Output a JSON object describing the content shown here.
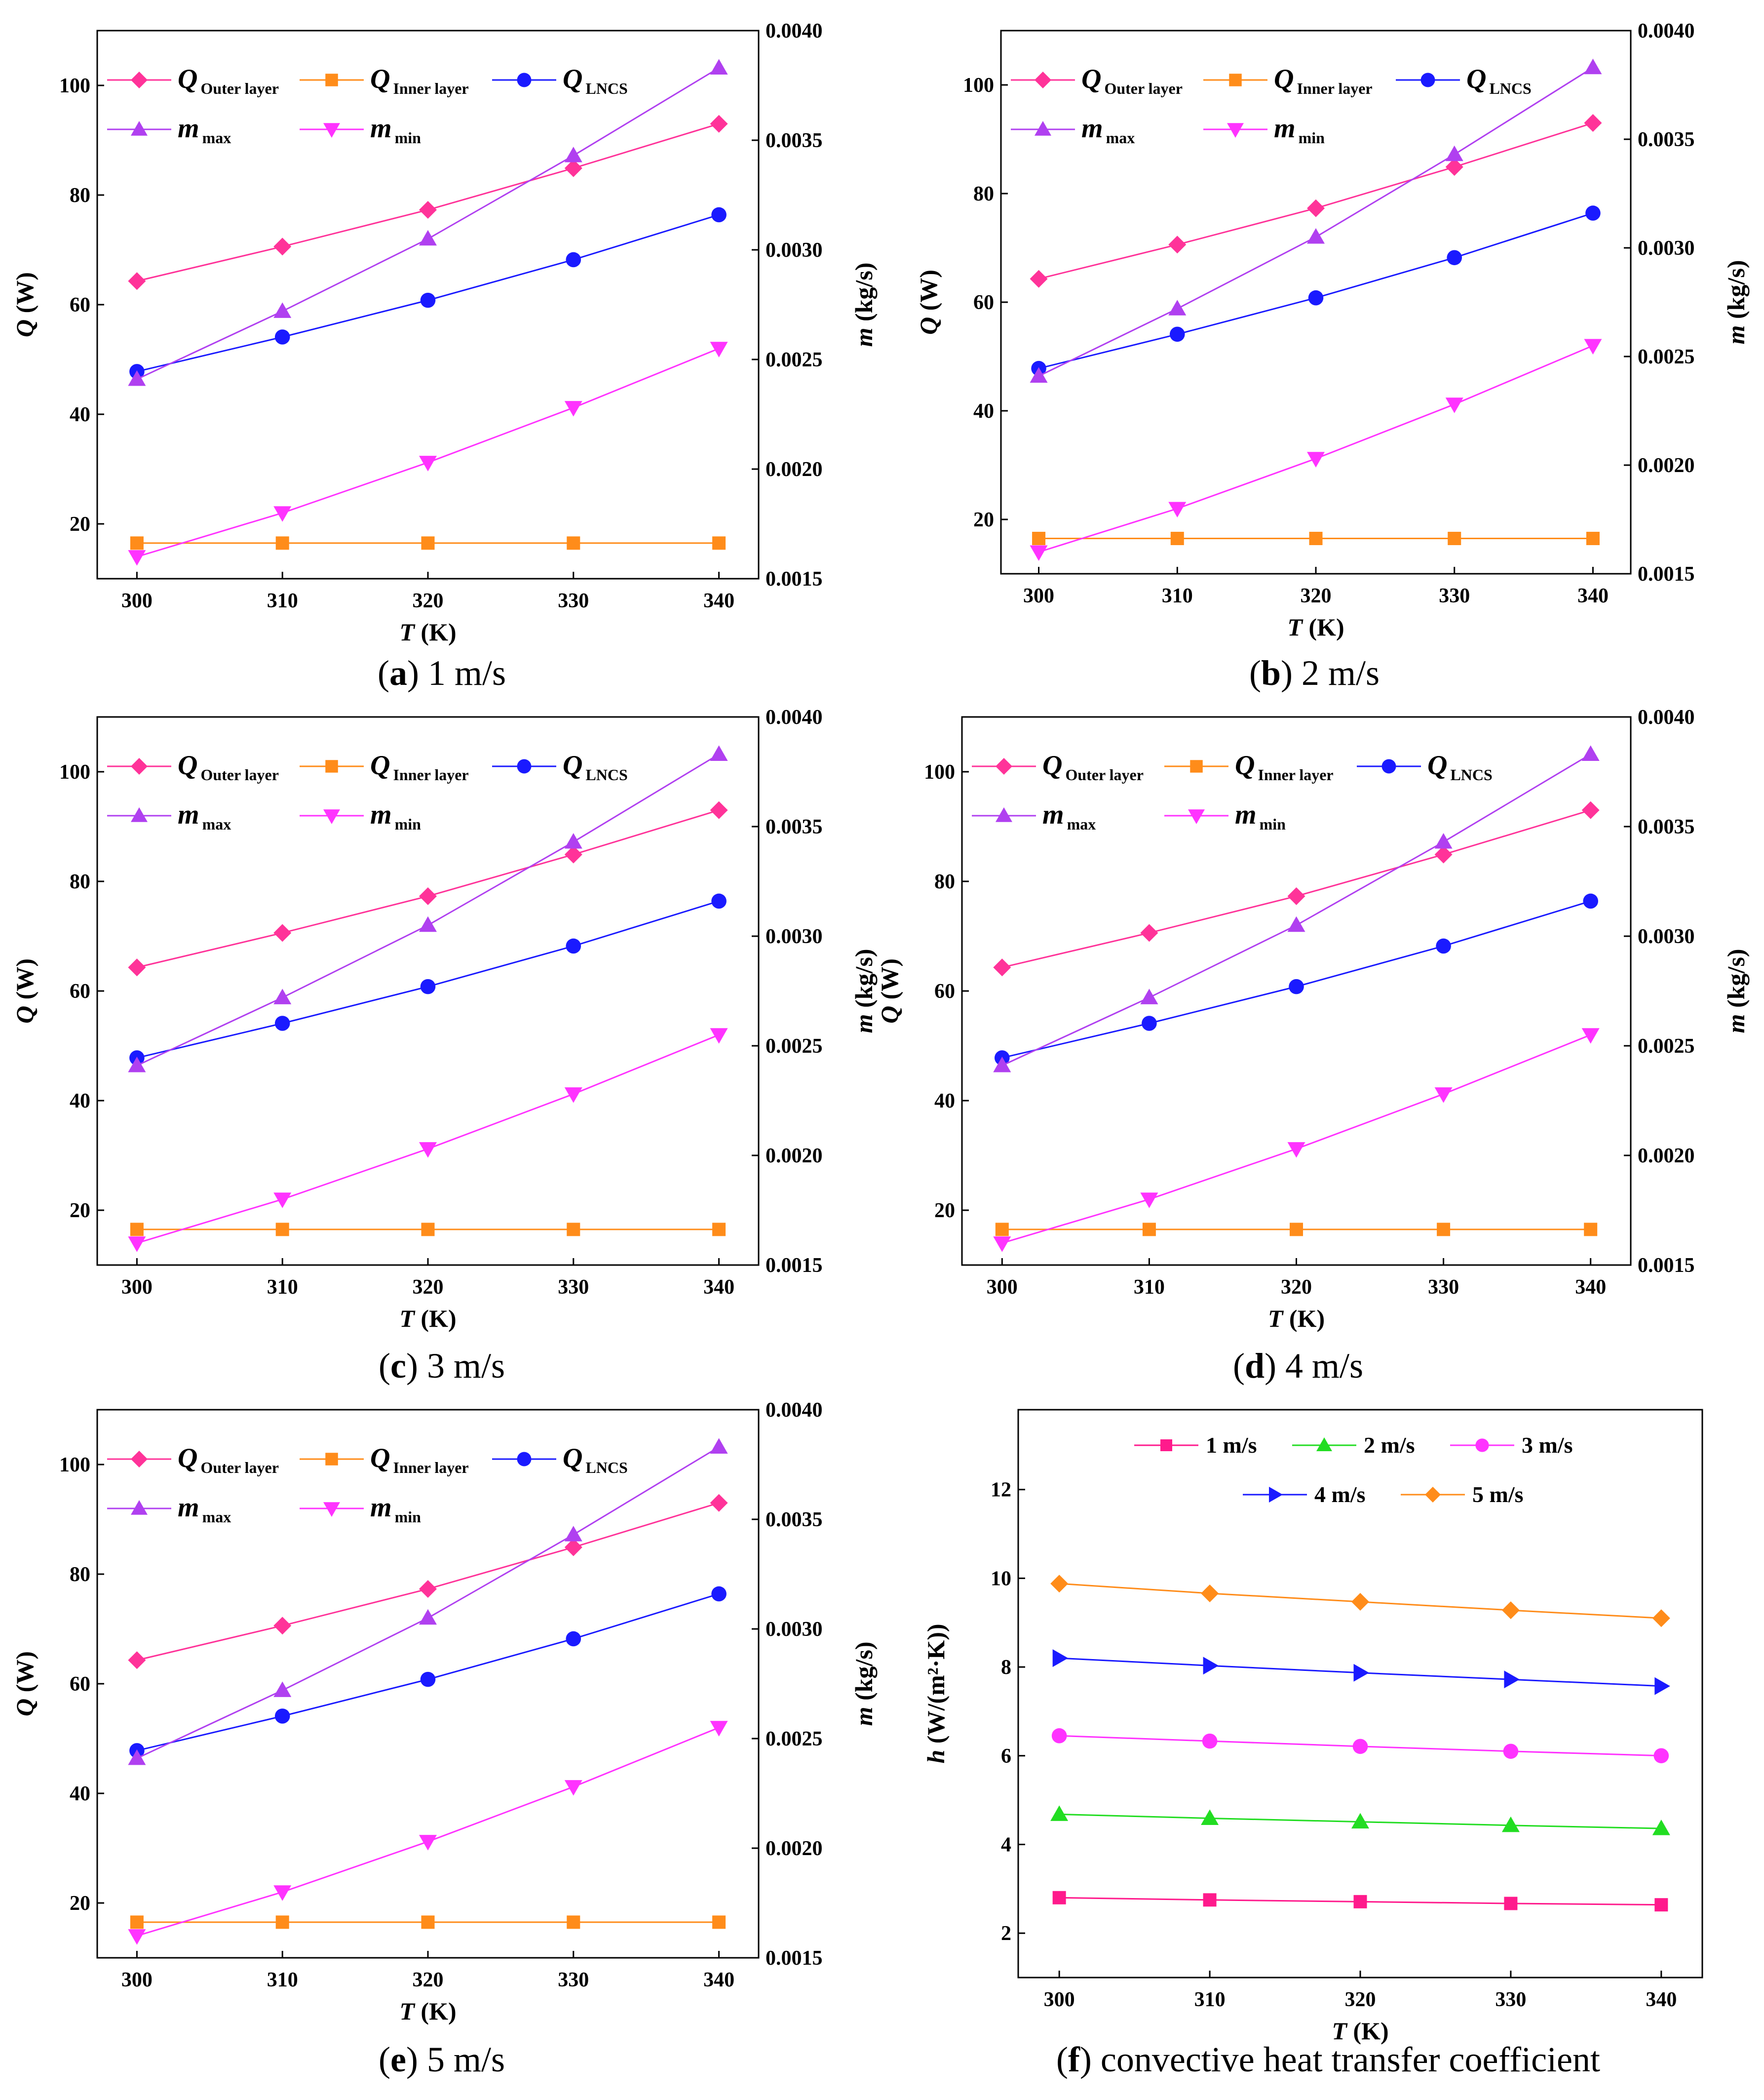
{
  "chart_data": [
    {
      "id": "a",
      "type": "line",
      "caption_letter": "a",
      "caption_text": "1 m/s",
      "xlabel": "T",
      "xlabel_unit": "(K)",
      "ylabel_left": "Q",
      "ylabel_left_unit": "(W)",
      "ylabel_right": "m",
      "ylabel_right_unit": "(kg/s)",
      "x": [
        300,
        310,
        320,
        330,
        340
      ],
      "xticks": [
        "300",
        "310",
        "320",
        "330",
        "340"
      ],
      "ylim_left": [
        10,
        110
      ],
      "yticks_left": [
        "20",
        "40",
        "60",
        "80",
        "100"
      ],
      "ylim_right": [
        0.0015,
        0.004
      ],
      "yticks_right": [
        "0.0015",
        "0.0020",
        "0.0025",
        "0.0030",
        "0.0035",
        "0.0040"
      ],
      "series": [
        {
          "name": "Q",
          "sub": "Outer layer",
          "axis": "left",
          "color": "#ff3399",
          "marker": "diamond",
          "values": [
            64.3,
            70.6,
            77.3,
            84.9,
            93.0
          ]
        },
        {
          "name": "Q",
          "sub": "Inner layer",
          "axis": "left",
          "color": "#ff8c1a",
          "marker": "square",
          "values": [
            16.5,
            16.5,
            16.5,
            16.5,
            16.5
          ]
        },
        {
          "name": "Q",
          "sub": "LNCS",
          "axis": "left",
          "color": "#1a1aff",
          "marker": "circle",
          "values": [
            47.8,
            54.1,
            60.8,
            68.2,
            76.4
          ]
        },
        {
          "name": "m",
          "sub": "max",
          "axis": "right",
          "color": "#b040f0",
          "marker": "triangle-up",
          "values": [
            0.00241,
            0.00272,
            0.00305,
            0.00343,
            0.00383
          ]
        },
        {
          "name": "m",
          "sub": "min",
          "axis": "right",
          "color": "#ff33ff",
          "marker": "triangle-down",
          "values": [
            0.0016,
            0.0018,
            0.00203,
            0.00228,
            0.00255
          ]
        }
      ]
    },
    {
      "id": "b",
      "type": "line",
      "caption_letter": "b",
      "caption_text": "2 m/s",
      "xlabel": "T",
      "xlabel_unit": "(K)",
      "ylabel_left": "Q",
      "ylabel_left_unit": "(W)",
      "ylabel_right": "m",
      "ylabel_right_unit": "(kg/s)",
      "x": [
        300,
        310,
        320,
        330,
        340
      ],
      "xticks": [
        "300",
        "310",
        "320",
        "330",
        "340"
      ],
      "ylim_left": [
        10,
        110
      ],
      "yticks_left": [
        "20",
        "40",
        "60",
        "80",
        "100"
      ],
      "ylim_right": [
        0.0015,
        0.004
      ],
      "yticks_right": [
        "0.0015",
        "0.0020",
        "0.0025",
        "0.0030",
        "0.0035",
        "0.0040"
      ],
      "series": [
        {
          "name": "Q",
          "sub": "Outer layer",
          "axis": "left",
          "color": "#ff3399",
          "marker": "diamond",
          "values": [
            64.3,
            70.6,
            77.3,
            84.9,
            93.0
          ]
        },
        {
          "name": "Q",
          "sub": "Inner layer",
          "axis": "left",
          "color": "#ff8c1a",
          "marker": "square",
          "values": [
            16.5,
            16.5,
            16.5,
            16.5,
            16.5
          ]
        },
        {
          "name": "Q",
          "sub": "LNCS",
          "axis": "left",
          "color": "#1a1aff",
          "marker": "circle",
          "values": [
            47.8,
            54.1,
            60.8,
            68.2,
            76.4
          ]
        },
        {
          "name": "m",
          "sub": "max",
          "axis": "right",
          "color": "#b040f0",
          "marker": "triangle-up",
          "values": [
            0.00241,
            0.00272,
            0.00305,
            0.00343,
            0.00383
          ]
        },
        {
          "name": "m",
          "sub": "min",
          "axis": "right",
          "color": "#ff33ff",
          "marker": "triangle-down",
          "values": [
            0.0016,
            0.0018,
            0.00203,
            0.00228,
            0.00255
          ]
        }
      ]
    },
    {
      "id": "c",
      "type": "line",
      "caption_letter": "c",
      "caption_text": "3 m/s",
      "xlabel": "T",
      "xlabel_unit": "(K)",
      "ylabel_left": "Q",
      "ylabel_left_unit": "(W)",
      "ylabel_right": "m",
      "ylabel_right_unit": "(kg/s)",
      "x": [
        300,
        310,
        320,
        330,
        340
      ],
      "xticks": [
        "300",
        "310",
        "320",
        "330",
        "340"
      ],
      "ylim_left": [
        10,
        110
      ],
      "yticks_left": [
        "20",
        "40",
        "60",
        "80",
        "100"
      ],
      "ylim_right": [
        0.0015,
        0.004
      ],
      "yticks_right": [
        "0.0015",
        "0.0020",
        "0.0025",
        "0.0030",
        "0.0035",
        "0.0040"
      ],
      "series": [
        {
          "name": "Q",
          "sub": "Outer layer",
          "axis": "left",
          "color": "#ff3399",
          "marker": "diamond",
          "values": [
            64.3,
            70.6,
            77.3,
            84.9,
            93.0
          ]
        },
        {
          "name": "Q",
          "sub": "Inner layer",
          "axis": "left",
          "color": "#ff8c1a",
          "marker": "square",
          "values": [
            16.5,
            16.5,
            16.5,
            16.5,
            16.5
          ]
        },
        {
          "name": "Q",
          "sub": "LNCS",
          "axis": "left",
          "color": "#1a1aff",
          "marker": "circle",
          "values": [
            47.8,
            54.1,
            60.8,
            68.2,
            76.4
          ]
        },
        {
          "name": "m",
          "sub": "max",
          "axis": "right",
          "color": "#b040f0",
          "marker": "triangle-up",
          "values": [
            0.00241,
            0.00272,
            0.00305,
            0.00343,
            0.00383
          ]
        },
        {
          "name": "m",
          "sub": "min",
          "axis": "right",
          "color": "#ff33ff",
          "marker": "triangle-down",
          "values": [
            0.0016,
            0.0018,
            0.00203,
            0.00228,
            0.00255
          ]
        }
      ]
    },
    {
      "id": "d",
      "type": "line",
      "caption_letter": "d",
      "caption_text": "4 m/s",
      "xlabel": "T",
      "xlabel_unit": "(K)",
      "ylabel_left": "Q",
      "ylabel_left_unit": "(W)",
      "ylabel_right": "m",
      "ylabel_right_unit": "(kg/s)",
      "x": [
        300,
        310,
        320,
        330,
        340
      ],
      "xticks": [
        "300",
        "310",
        "320",
        "330",
        "340"
      ],
      "ylim_left": [
        10,
        110
      ],
      "yticks_left": [
        "20",
        "40",
        "60",
        "80",
        "100"
      ],
      "ylim_right": [
        0.0015,
        0.004
      ],
      "yticks_right": [
        "0.0015",
        "0.0020",
        "0.0025",
        "0.0030",
        "0.0035",
        "0.0040"
      ],
      "series": [
        {
          "name": "Q",
          "sub": "Outer layer",
          "axis": "left",
          "color": "#ff3399",
          "marker": "diamond",
          "values": [
            64.3,
            70.6,
            77.3,
            84.9,
            93.0
          ]
        },
        {
          "name": "Q",
          "sub": "Inner layer",
          "axis": "left",
          "color": "#ff8c1a",
          "marker": "square",
          "values": [
            16.5,
            16.5,
            16.5,
            16.5,
            16.5
          ]
        },
        {
          "name": "Q",
          "sub": "LNCS",
          "axis": "left",
          "color": "#1a1aff",
          "marker": "circle",
          "values": [
            47.8,
            54.1,
            60.8,
            68.2,
            76.4
          ]
        },
        {
          "name": "m",
          "sub": "max",
          "axis": "right",
          "color": "#b040f0",
          "marker": "triangle-up",
          "values": [
            0.00241,
            0.00272,
            0.00305,
            0.00343,
            0.00383
          ]
        },
        {
          "name": "m",
          "sub": "min",
          "axis": "right",
          "color": "#ff33ff",
          "marker": "triangle-down",
          "values": [
            0.0016,
            0.0018,
            0.00203,
            0.00228,
            0.00255
          ]
        }
      ]
    },
    {
      "id": "e",
      "type": "line",
      "caption_letter": "e",
      "caption_text": "5 m/s",
      "xlabel": "T",
      "xlabel_unit": "(K)",
      "ylabel_left": "Q",
      "ylabel_left_unit": "(W)",
      "ylabel_right": "m",
      "ylabel_right_unit": "(kg/s)",
      "x": [
        300,
        310,
        320,
        330,
        340
      ],
      "xticks": [
        "300",
        "310",
        "320",
        "330",
        "340"
      ],
      "ylim_left": [
        10,
        110
      ],
      "yticks_left": [
        "20",
        "40",
        "60",
        "80",
        "100"
      ],
      "ylim_right": [
        0.0015,
        0.004
      ],
      "yticks_right": [
        "0.0015",
        "0.0020",
        "0.0025",
        "0.0030",
        "0.0035",
        "0.0040"
      ],
      "series": [
        {
          "name": "Q",
          "sub": "Outer layer",
          "axis": "left",
          "color": "#ff3399",
          "marker": "diamond",
          "values": [
            64.3,
            70.6,
            77.3,
            84.9,
            93.0
          ]
        },
        {
          "name": "Q",
          "sub": "Inner layer",
          "axis": "left",
          "color": "#ff8c1a",
          "marker": "square",
          "values": [
            16.5,
            16.5,
            16.5,
            16.5,
            16.5
          ]
        },
        {
          "name": "Q",
          "sub": "LNCS",
          "axis": "left",
          "color": "#1a1aff",
          "marker": "circle",
          "values": [
            47.8,
            54.1,
            60.8,
            68.2,
            76.4
          ]
        },
        {
          "name": "m",
          "sub": "max",
          "axis": "right",
          "color": "#b040f0",
          "marker": "triangle-up",
          "values": [
            0.00241,
            0.00272,
            0.00305,
            0.00343,
            0.00383
          ]
        },
        {
          "name": "m",
          "sub": "min",
          "axis": "right",
          "color": "#ff33ff",
          "marker": "triangle-down",
          "values": [
            0.0016,
            0.0018,
            0.00203,
            0.00228,
            0.00255
          ]
        }
      ]
    },
    {
      "id": "f",
      "type": "line",
      "caption_letter": "f",
      "caption_text": "convective heat transfer coefficient",
      "xlabel": "T",
      "xlabel_unit": "(K)",
      "ylabel_left": "h",
      "ylabel_left_unit": "(W/(m²·K))",
      "x": [
        300,
        310,
        320,
        330,
        340
      ],
      "xticks": [
        "300",
        "310",
        "320",
        "330",
        "340"
      ],
      "ylim_left": [
        1,
        13.8
      ],
      "yticks_left": [
        "2",
        "4",
        "6",
        "8",
        "10",
        "12"
      ],
      "series": [
        {
          "name": "1 m/s",
          "axis": "left",
          "color": "#ff1a8c",
          "marker": "square",
          "values": [
            2.8,
            2.75,
            2.71,
            2.67,
            2.64
          ]
        },
        {
          "name": "2 m/s",
          "axis": "left",
          "color": "#22dd22",
          "marker": "triangle-up",
          "values": [
            4.68,
            4.59,
            4.51,
            4.43,
            4.36
          ]
        },
        {
          "name": "3 m/s",
          "axis": "left",
          "color": "#ff33ff",
          "marker": "circle",
          "values": [
            6.45,
            6.33,
            6.21,
            6.1,
            6.0
          ]
        },
        {
          "name": "4 m/s",
          "axis": "left",
          "color": "#1a1aff",
          "marker": "triangle-right",
          "values": [
            8.2,
            8.03,
            7.87,
            7.72,
            7.57
          ]
        },
        {
          "name": "5 m/s",
          "axis": "left",
          "color": "#ff8c1a",
          "marker": "diamond",
          "values": [
            9.88,
            9.66,
            9.47,
            9.28,
            9.1
          ]
        }
      ]
    }
  ]
}
